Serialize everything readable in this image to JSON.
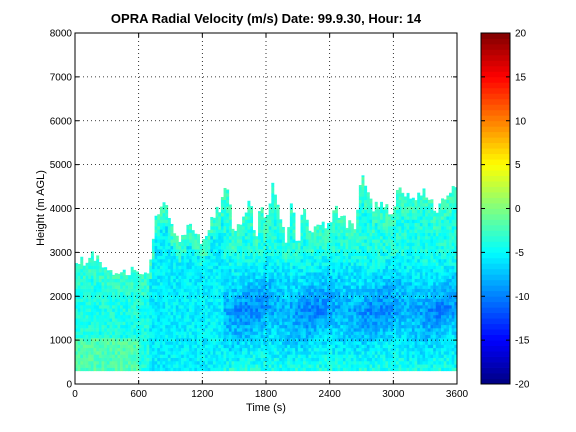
{
  "chart_data": {
    "type": "heatmap",
    "title": "OPRA Radial Velocity (m/s)  Date: 99.9.30, Hour: 14",
    "xlabel": "Time (s)",
    "ylabel": "Height (m AGL)",
    "xlim": [
      0,
      3600
    ],
    "ylim": [
      0,
      8000
    ],
    "xticks": [
      "0",
      "600",
      "1200",
      "1800",
      "2400",
      "3000",
      "3600"
    ],
    "yticks": [
      "0",
      "1000",
      "2000",
      "3000",
      "4000",
      "5000",
      "6000",
      "7000",
      "8000"
    ],
    "grid": "dotted",
    "colorbar": {
      "clim": [
        -20,
        20
      ],
      "ticks": [
        "-20",
        "-15",
        "-10",
        "-5",
        "0",
        "5",
        "10",
        "15",
        "20"
      ],
      "colormap": "jet",
      "position": "right"
    },
    "data_extent": {
      "height_bottom_m": 300,
      "echo_top_by_time": {
        "time_s": [
          0,
          180,
          300,
          500,
          600,
          700,
          760,
          800,
          850,
          900,
          1000,
          1100,
          1200,
          1300,
          1380,
          1430,
          1500,
          1600,
          1650,
          1700,
          1750,
          1800,
          1860,
          1950,
          2000,
          2050,
          2100,
          2150,
          2200,
          2300,
          2400,
          2450,
          2550,
          2650,
          2700,
          2800,
          2900,
          3000,
          3050,
          3100,
          3200,
          3300,
          3400,
          3500,
          3600
        ],
        "top_m": [
          2700,
          2950,
          2500,
          2600,
          2500,
          2600,
          3900,
          3800,
          4300,
          3600,
          3300,
          3700,
          3100,
          3800,
          4100,
          4500,
          3400,
          3900,
          4300,
          3300,
          4000,
          3700,
          4500,
          3600,
          3200,
          4350,
          3000,
          4100,
          3500,
          3600,
          3600,
          4000,
          3700,
          3500,
          4900,
          4000,
          4200,
          3800,
          4600,
          4300,
          4200,
          4400,
          3900,
          4300,
          4500
        ]
      }
    },
    "velocity_pattern_m_s": {
      "bottom_layer_0_to_600s": -2,
      "upper_edge_typical": -3,
      "core_typical": -8,
      "core_minimum": -11,
      "core_time_range_s": [
        1400,
        3600
      ],
      "core_height_range_m": [
        800,
        2500
      ]
    }
  }
}
